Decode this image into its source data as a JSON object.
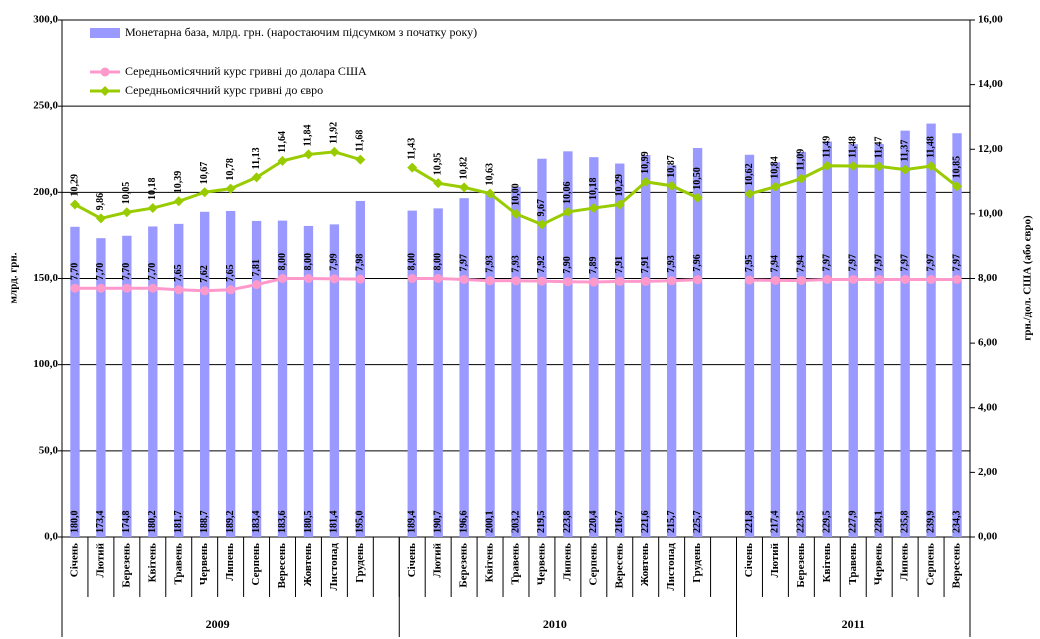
{
  "chart_data": {
    "type": "bar_line",
    "y_label": "млрд. грн.",
    "y2_label": "грн./дол. США (або євро)",
    "categories": [
      "Січень",
      "Лютий",
      "Березень",
      "Квітень",
      "Травень",
      "Червень",
      "Липень",
      "Серпень",
      "Вересень",
      "Жовтень",
      "Листопад",
      "Грудень",
      null,
      "Січень",
      "Лютий",
      "Березень",
      "Квітень",
      "Травень",
      "Червень",
      "Липень",
      "Серпень",
      "Вересень",
      "Жовтень",
      "Листопад",
      "Грудень",
      null,
      "Січень",
      "Лютий",
      "Березень",
      "Квітень",
      "Травень",
      "Червень",
      "Липень",
      "Серпень",
      "Вересень"
    ],
    "groups": [
      "2009",
      "2010",
      "2011"
    ],
    "ylim": [
      0,
      300
    ],
    "yticks": [
      {
        "value": 0,
        "label": "0,0"
      },
      {
        "value": 50,
        "label": "50,0"
      },
      {
        "value": 100,
        "label": "100,0"
      },
      {
        "value": 150,
        "label": "150,0"
      },
      {
        "value": 200,
        "label": "200,0"
      },
      {
        "value": 250,
        "label": "250,0"
      },
      {
        "value": 300,
        "label": "300,0"
      }
    ],
    "y2lim": [
      0,
      16
    ],
    "y2ticks": [
      {
        "value": 0,
        "label": "0,00"
      },
      {
        "value": 2,
        "label": "2,00"
      },
      {
        "value": 4,
        "label": "4,00"
      },
      {
        "value": 6,
        "label": "6,00"
      },
      {
        "value": 8,
        "label": "8,00"
      },
      {
        "value": 10,
        "label": "10,00"
      },
      {
        "value": 12,
        "label": "12,00"
      },
      {
        "value": 14,
        "label": "14,00"
      },
      {
        "value": 16,
        "label": "16,00"
      }
    ],
    "grid": true,
    "series": [
      {
        "name": "Монетарна база, млрд. грн. (наростаючим підсумком з початку року)",
        "type": "bar",
        "color": "#9999ff",
        "values": [
          180.0,
          173.4,
          174.8,
          180.2,
          181.7,
          188.7,
          189.2,
          183.4,
          183.6,
          180.5,
          181.4,
          195.0,
          null,
          189.4,
          190.7,
          196.6,
          200.1,
          203.2,
          219.5,
          223.8,
          220.4,
          216.7,
          221.6,
          215.7,
          225.7,
          null,
          221.8,
          217.4,
          223.5,
          229.5,
          227.9,
          228.1,
          235.8,
          239.9,
          234.3
        ],
        "value_labels": [
          "180,0",
          "173,4",
          "174,8",
          "180,2",
          "181,7",
          "188,7",
          "189,2",
          "183,4",
          "183,6",
          "180,5",
          "181,4",
          "195,0",
          null,
          "189,4",
          "190,7",
          "196,6",
          "200,1",
          "203,2",
          "219,5",
          "223,8",
          "220,4",
          "216,7",
          "221,6",
          "215,7",
          "225,7",
          null,
          "221,8",
          "217,4",
          "223,5",
          "229,5",
          "227,9",
          "228,1",
          "235,8",
          "239,9",
          "234,3"
        ]
      },
      {
        "name": "Середньомісячний курс гривні до долара США",
        "type": "line",
        "axis": "y2",
        "color": "#ff99cc",
        "marker": "circle",
        "values": [
          7.7,
          7.7,
          7.7,
          7.7,
          7.65,
          7.62,
          7.65,
          7.81,
          8.0,
          8.0,
          7.99,
          7.98,
          null,
          8.0,
          8.0,
          7.97,
          7.93,
          7.93,
          7.92,
          7.9,
          7.89,
          7.91,
          7.91,
          7.93,
          7.96,
          null,
          7.95,
          7.94,
          7.94,
          7.97,
          7.97,
          7.97,
          7.97,
          7.97,
          7.97
        ],
        "value_labels": [
          "7,70",
          "7,70",
          "7,70",
          "7,70",
          "7,65",
          "7,62",
          "7,65",
          "7,81",
          "8,00",
          "8,00",
          "7,99",
          "7,98",
          null,
          "8,00",
          "8,00",
          "7,97",
          "7,93",
          "7,93",
          "7,92",
          "7,90",
          "7,89",
          "7,91",
          "7,91",
          "7,93",
          "7,96",
          null,
          "7,95",
          "7,94",
          "7,94",
          "7,97",
          "7,97",
          "7,97",
          "7,97",
          "7,97",
          "7,97"
        ]
      },
      {
        "name": "Середньомісячний курс гривні до євро",
        "type": "line",
        "axis": "y2",
        "color": "#99cc00",
        "marker": "diamond",
        "values": [
          10.29,
          9.86,
          10.05,
          10.18,
          10.39,
          10.67,
          10.78,
          11.13,
          11.64,
          11.84,
          11.92,
          11.68,
          null,
          11.43,
          10.95,
          10.82,
          10.63,
          10.0,
          9.67,
          10.06,
          10.18,
          10.29,
          10.99,
          10.87,
          10.5,
          null,
          10.62,
          10.84,
          11.09,
          11.49,
          11.48,
          11.47,
          11.37,
          11.48,
          10.85
        ],
        "value_labels": [
          "10,29",
          "9,86",
          "10,05",
          "10,18",
          "10,39",
          "10,67",
          "10,78",
          "11,13",
          "11,64",
          "11,84",
          "11,92",
          "11,68",
          null,
          "11,43",
          "10,95",
          "10,82",
          "10,63",
          "10,00",
          "9,67",
          "10,06",
          "10,18",
          "10,29",
          "10,99",
          "10,87",
          "10,50",
          null,
          "10,62",
          "10,84",
          "11,09",
          "11,49",
          "11,48",
          "11,47",
          "11,37",
          "11,48",
          "10,85"
        ]
      }
    ]
  }
}
